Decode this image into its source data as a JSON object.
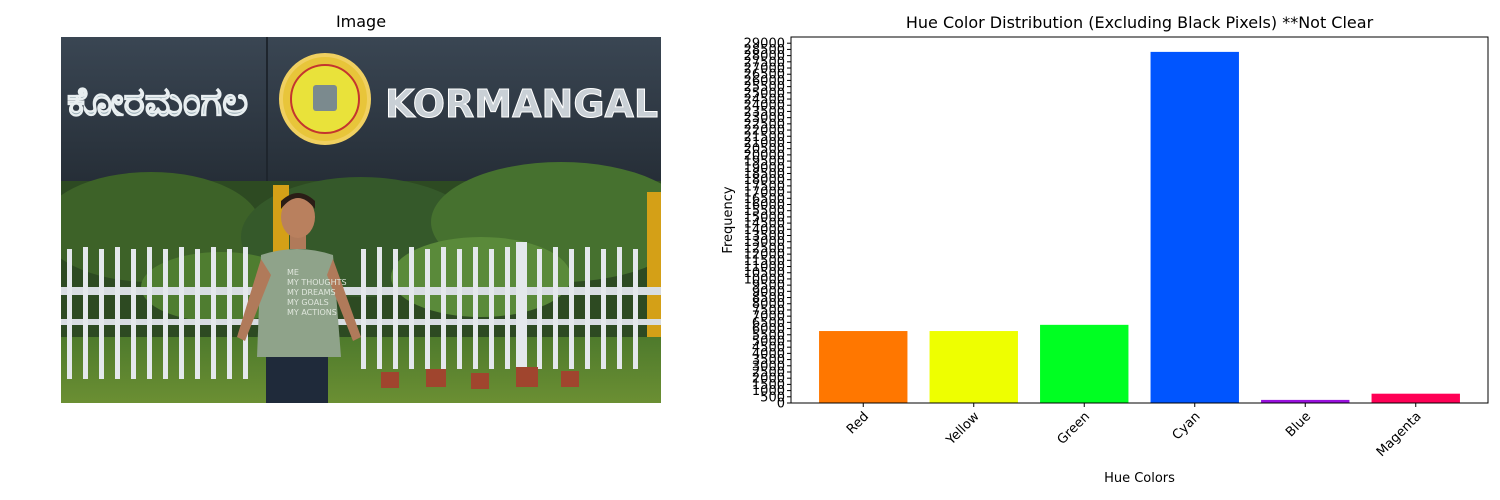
{
  "left_panel": {
    "title": "Image",
    "photo": {
      "sign_script_text": "ಕೋರಮಂಗಲ",
      "sign_latin_text": "KORMANGAL",
      "shirt_text": [
        "ME",
        "MY THOUGHTS",
        "MY DREAMS",
        "MY GOALS",
        "MY ACTIONS"
      ]
    }
  },
  "chart_data": {
    "type": "bar",
    "title": "Hue Color Distribution (Excluding Black Pixels) **Not Clear",
    "xlabel": "Hue Colors",
    "ylabel": "Frequency",
    "categories": [
      "Red",
      "Yellow",
      "Green",
      "Cyan",
      "Blue",
      "Magenta"
    ],
    "values": [
      5800,
      5800,
      6300,
      28300,
      250,
      750
    ],
    "colors": [
      "#ff7700",
      "#eeff00",
      "#00ff22",
      "#0055ff",
      "#9911dd",
      "#ff0055"
    ],
    "ylim": [
      0,
      29500
    ],
    "yticks": [
      0,
      500,
      1000,
      1500,
      2000,
      2500,
      3000,
      3500,
      4000,
      4500,
      5000,
      5500,
      6000,
      6500,
      7000,
      7500,
      8000,
      8500,
      9000,
      9500,
      10000,
      10500,
      11000,
      11500,
      12000,
      12500,
      13000,
      13500,
      14000,
      14500,
      15000,
      15500,
      16000,
      16500,
      17000,
      17500,
      18000,
      18500,
      19000,
      19500,
      20000,
      20500,
      21000,
      21500,
      22000,
      22500,
      23000,
      23500,
      24000,
      24500,
      25000,
      25500,
      26000,
      26500,
      27000,
      27500,
      28000,
      28500,
      29000
    ],
    "grid": false,
    "legend": "none",
    "xtick_rotation_deg": 45
  }
}
